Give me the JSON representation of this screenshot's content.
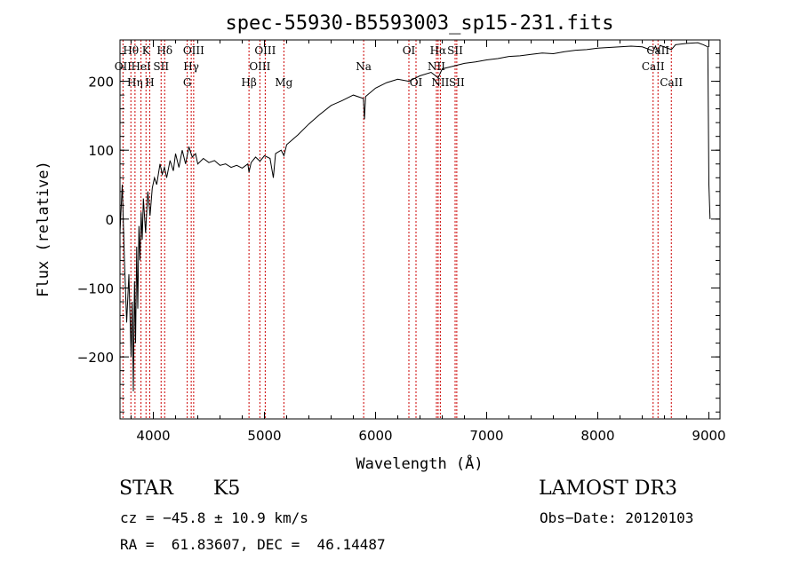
{
  "chart_data": {
    "type": "line",
    "title": "spec-55930-B5593003_sp15-231.fits",
    "xlabel": "Wavelength (Å)",
    "ylabel": "Flux (relative)",
    "xlim": [
      3700,
      9100
    ],
    "ylim": [
      -290,
      260
    ],
    "x_ticks": [
      4000,
      5000,
      6000,
      7000,
      8000,
      9000
    ],
    "y_ticks": [
      -200,
      -100,
      0,
      100,
      200
    ],
    "grid": false,
    "series": [
      {
        "values": [
          [
            3700,
            -20
          ],
          [
            3720,
            50
          ],
          [
            3740,
            -60
          ],
          [
            3760,
            -150
          ],
          [
            3780,
            -80
          ],
          [
            3800,
            -200
          ],
          [
            3810,
            -120
          ],
          [
            3820,
            -250
          ],
          [
            3830,
            -90
          ],
          [
            3840,
            -180
          ],
          [
            3850,
            -40
          ],
          [
            3860,
            -130
          ],
          [
            3870,
            -10
          ],
          [
            3880,
            -60
          ],
          [
            3890,
            10
          ],
          [
            3900,
            -30
          ],
          [
            3910,
            30
          ],
          [
            3930,
            -20
          ],
          [
            3950,
            40
          ],
          [
            3970,
            5
          ],
          [
            3990,
            45
          ],
          [
            4010,
            60
          ],
          [
            4030,
            50
          ],
          [
            4060,
            80
          ],
          [
            4080,
            65
          ],
          [
            4100,
            75
          ],
          [
            4120,
            60
          ],
          [
            4150,
            85
          ],
          [
            4180,
            70
          ],
          [
            4200,
            95
          ],
          [
            4230,
            75
          ],
          [
            4260,
            100
          ],
          [
            4290,
            80
          ],
          [
            4320,
            105
          ],
          [
            4350,
            90
          ],
          [
            4380,
            95
          ],
          [
            4400,
            80
          ],
          [
            4450,
            88
          ],
          [
            4500,
            82
          ],
          [
            4550,
            85
          ],
          [
            4600,
            78
          ],
          [
            4650,
            80
          ],
          [
            4700,
            75
          ],
          [
            4750,
            78
          ],
          [
            4800,
            74
          ],
          [
            4850,
            80
          ],
          [
            4861,
            68
          ],
          [
            4880,
            82
          ],
          [
            4920,
            90
          ],
          [
            4960,
            84
          ],
          [
            5000,
            92
          ],
          [
            5050,
            88
          ],
          [
            5080,
            60
          ],
          [
            5100,
            95
          ],
          [
            5150,
            100
          ],
          [
            5175,
            92
          ],
          [
            5200,
            108
          ],
          [
            5300,
            122
          ],
          [
            5400,
            138
          ],
          [
            5500,
            152
          ],
          [
            5600,
            165
          ],
          [
            5700,
            172
          ],
          [
            5800,
            180
          ],
          [
            5890,
            175
          ],
          [
            5900,
            145
          ],
          [
            5910,
            178
          ],
          [
            6000,
            190
          ],
          [
            6100,
            198
          ],
          [
            6200,
            203
          ],
          [
            6300,
            200
          ],
          [
            6400,
            208
          ],
          [
            6500,
            213
          ],
          [
            6563,
            205
          ],
          [
            6600,
            218
          ],
          [
            6700,
            222
          ],
          [
            6800,
            226
          ],
          [
            6900,
            228
          ],
          [
            7000,
            231
          ],
          [
            7100,
            233
          ],
          [
            7200,
            236
          ],
          [
            7300,
            237
          ],
          [
            7400,
            239
          ],
          [
            7500,
            241
          ],
          [
            7600,
            240
          ],
          [
            7700,
            243
          ],
          [
            7800,
            245
          ],
          [
            7900,
            246
          ],
          [
            8000,
            248
          ],
          [
            8100,
            249
          ],
          [
            8200,
            250
          ],
          [
            8300,
            251
          ],
          [
            8400,
            250
          ],
          [
            8498,
            244
          ],
          [
            8520,
            251
          ],
          [
            8542,
            242
          ],
          [
            8560,
            252
          ],
          [
            8662,
            246
          ],
          [
            8700,
            253
          ],
          [
            8800,
            255
          ],
          [
            8900,
            256
          ],
          [
            8950,
            253
          ],
          [
            8990,
            250
          ],
          [
            9000,
            50
          ],
          [
            9010,
            0
          ]
        ]
      }
    ],
    "line_markers": [
      {
        "label": "Hθ",
        "x": 3798,
        "row": 0
      },
      {
        "label": "OII",
        "x": 3727,
        "row": 1
      },
      {
        "label": "Hη",
        "x": 3835,
        "row": 2
      },
      {
        "label": "K",
        "x": 3934,
        "row": 0
      },
      {
        "label": "HeI",
        "x": 3889,
        "row": 1
      },
      {
        "label": "H",
        "x": 3968,
        "row": 2
      },
      {
        "label": "Hδ",
        "x": 4102,
        "row": 0
      },
      {
        "label": "SII",
        "x": 4070,
        "row": 1
      },
      {
        "label": "OIII",
        "x": 4363,
        "row": 0
      },
      {
        "label": "Hγ",
        "x": 4341,
        "row": 1
      },
      {
        "label": "G",
        "x": 4305,
        "row": 2
      },
      {
        "label": "Hβ",
        "x": 4861,
        "row": 2
      },
      {
        "label": "OIII",
        "x": 5007,
        "row": 0
      },
      {
        "label": "OIII",
        "x": 4959,
        "row": 1
      },
      {
        "label": "Mg",
        "x": 5175,
        "row": 2
      },
      {
        "label": "Na",
        "x": 5893,
        "row": 1
      },
      {
        "label": "OI",
        "x": 6300,
        "row": 0
      },
      {
        "label": "OI",
        "x": 6364,
        "row": 2
      },
      {
        "label": "Hα",
        "x": 6563,
        "row": 0
      },
      {
        "label": "SII",
        "x": 6716,
        "row": 0
      },
      {
        "label": "NII",
        "x": 6548,
        "row": 1
      },
      {
        "label": "NII",
        "x": 6583,
        "row": 2
      },
      {
        "label": "SII",
        "x": 6731,
        "row": 2
      },
      {
        "label": "CaII",
        "x": 8542,
        "row": 0
      },
      {
        "label": "CaII",
        "x": 8498,
        "row": 1
      },
      {
        "label": "CaII",
        "x": 8662,
        "row": 2
      }
    ],
    "line_color": "#000000",
    "marker_color": "#cc0000"
  },
  "info": {
    "object_class": "STAR",
    "subclass": "K5",
    "survey": "LAMOST DR3",
    "redshift_text": "cz = −45.8 ± 10.9 km/s",
    "obs_date": "Obs−Date: 20120103",
    "coords": "RA =  61.83607, DEC =  46.14487"
  }
}
